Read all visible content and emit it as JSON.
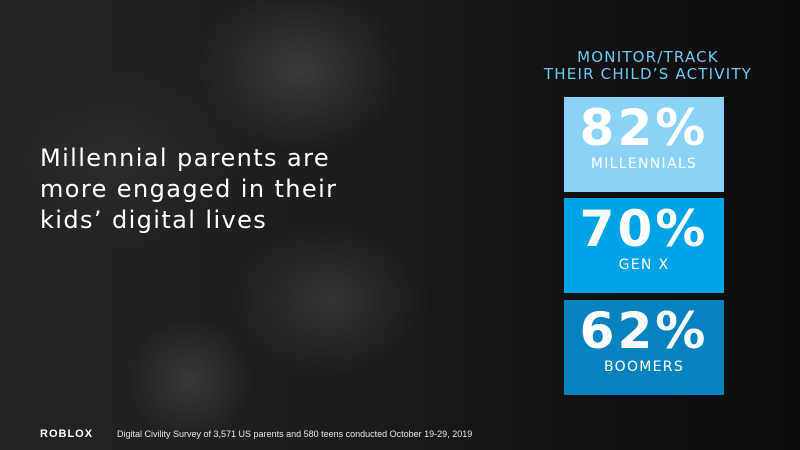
{
  "headline": "Millennial parents are\nmore engaged in their\nkids’ digital lives",
  "stat_header": "MONITOR/TRACK\nTHEIR CHILD’S ACTIVITY",
  "stats": [
    {
      "value": "82%",
      "label": "MILLENNIALS",
      "color": "#8ad3f7"
    },
    {
      "value": "70%",
      "label": "GEN X",
      "color": "#00a3e6"
    },
    {
      "value": "62%",
      "label": "BOOMERS",
      "color": "#0583bf"
    }
  ],
  "logo": "ROBLOX",
  "footnote": "Digital Civility Survey of 3,571 US parents and 580 teens conducted October 19-29, 2019",
  "colors": {
    "header_text": "#6fc8f2"
  }
}
